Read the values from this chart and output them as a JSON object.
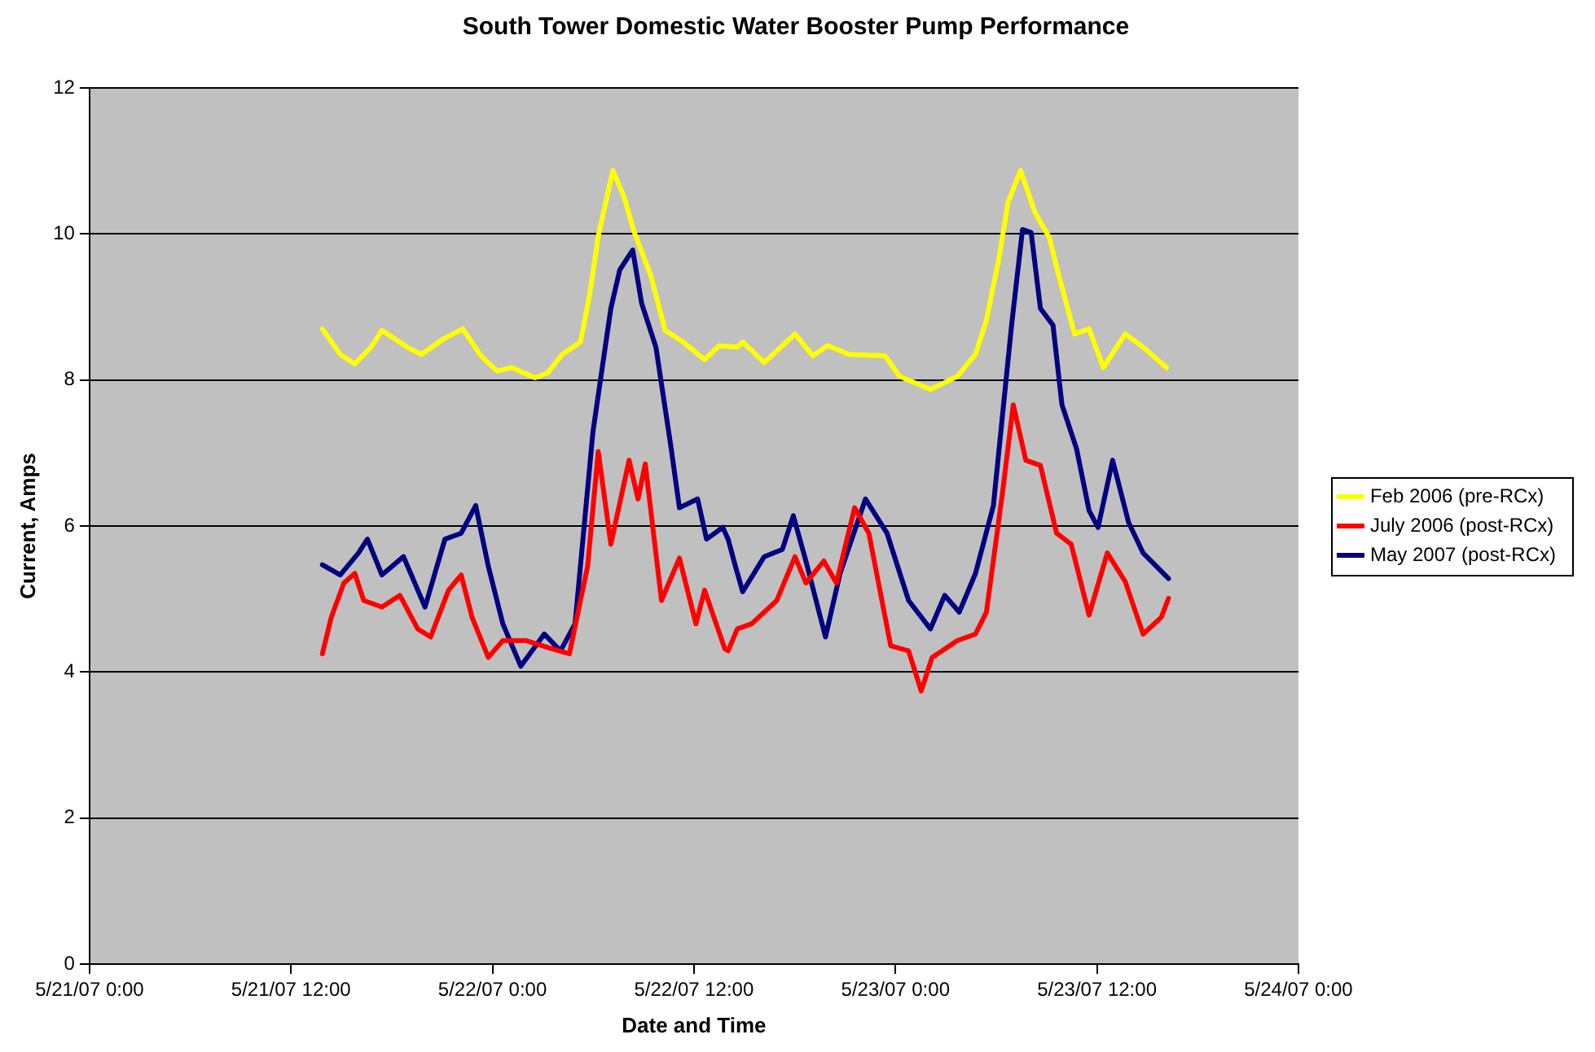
{
  "chart_data": {
    "type": "line",
    "title": "South Tower Domestic Water Booster Pump Performance",
    "xlabel": "Date and Time",
    "ylabel": "Current, Amps",
    "xlim": [
      "2007-05-21T00:00",
      "2007-05-24T00:00"
    ],
    "xticks": [
      {
        "value": "2007-05-21T00:00",
        "label": "5/21/07 0:00"
      },
      {
        "value": "2007-05-21T12:00",
        "label": "5/21/07 12:00"
      },
      {
        "value": "2007-05-22T00:00",
        "label": "5/22/07 0:00"
      },
      {
        "value": "2007-05-22T12:00",
        "label": "5/22/07 12:00"
      },
      {
        "value": "2007-05-23T00:00",
        "label": "5/23/07 0:00"
      },
      {
        "value": "2007-05-23T12:00",
        "label": "5/23/07 12:00"
      },
      {
        "value": "2007-05-24T00:00",
        "label": "5/24/07 0:00"
      }
    ],
    "ylim": [
      0,
      12
    ],
    "yticks": [
      0,
      2,
      4,
      6,
      8,
      10,
      12
    ],
    "grid": "y",
    "legend": "right",
    "marker": "none",
    "line_style": "solid",
    "series": [
      {
        "name": "Feb 2006 (pre-RCx)",
        "color": "#ffff00",
        "x": [
          "2007-05-21T13:52",
          "2007-05-21T14:56",
          "2007-05-21T15:48",
          "2007-05-21T16:46",
          "2007-05-21T17:25",
          "2007-05-21T18:55",
          "2007-05-21T19:46",
          "2007-05-21T21:04",
          "2007-05-21T22:14",
          "2007-05-21T23:19",
          "2007-05-22T00:17",
          "2007-05-22T01:09",
          "2007-05-22T02:32",
          "2007-05-22T03:18",
          "2007-05-22T04:09",
          "2007-05-22T05:14",
          "2007-05-22T05:46",
          "2007-05-22T06:18",
          "2007-05-22T07:10",
          "2007-05-22T07:49",
          "2007-05-22T08:27",
          "2007-05-22T09:25",
          "2007-05-22T10:17",
          "2007-05-22T11:21",
          "2007-05-22T12:38",
          "2007-05-22T13:30",
          "2007-05-22T14:35",
          "2007-05-22T14:54",
          "2007-05-22T16:11",
          "2007-05-22T18:01",
          "2007-05-22T19:05",
          "2007-05-22T19:57",
          "2007-05-22T21:14",
          "2007-05-22T23:23",
          "2007-05-23T00:15",
          "2007-05-23T02:05",
          "2007-05-23T03:41",
          "2007-05-23T04:46",
          "2007-05-23T05:25",
          "2007-05-23T06:10",
          "2007-05-23T06:42",
          "2007-05-23T07:27",
          "2007-05-23T08:19",
          "2007-05-23T09:10",
          "2007-05-23T09:43",
          "2007-05-23T10:40",
          "2007-05-23T11:32",
          "2007-05-23T12:23",
          "2007-05-23T13:41",
          "2007-05-23T14:45",
          "2007-05-23T16:09"
        ],
        "values": [
          8.7,
          8.35,
          8.22,
          8.45,
          8.68,
          8.45,
          8.35,
          8.56,
          8.7,
          8.33,
          8.12,
          8.17,
          8.03,
          8.1,
          8.35,
          8.52,
          9.14,
          9.97,
          10.87,
          10.52,
          10.02,
          9.44,
          8.68,
          8.52,
          8.28,
          8.47,
          8.45,
          8.52,
          8.24,
          8.63,
          8.33,
          8.47,
          8.35,
          8.33,
          8.05,
          7.87,
          8.05,
          8.35,
          8.82,
          9.67,
          10.43,
          10.87,
          10.29,
          9.95,
          9.44,
          8.63,
          8.7,
          8.17,
          8.63,
          8.45,
          8.17
        ]
      },
      {
        "name": "July 2006 (post-RCx)",
        "color": "#ff0000",
        "x": [
          "2007-05-21T13:52",
          "2007-05-21T14:24",
          "2007-05-21T15:09",
          "2007-05-21T15:48",
          "2007-05-21T16:20",
          "2007-05-21T17:25",
          "2007-05-21T18:29",
          "2007-05-21T19:33",
          "2007-05-21T20:19",
          "2007-05-21T21:23",
          "2007-05-21T22:08",
          "2007-05-21T22:47",
          "2007-05-21T23:45",
          "2007-05-22T00:37",
          "2007-05-22T02:01",
          "2007-05-22T03:31",
          "2007-05-22T04:35",
          "2007-05-22T05:40",
          "2007-05-22T06:18",
          "2007-05-22T07:03",
          "2007-05-22T08:08",
          "2007-05-22T08:40",
          "2007-05-22T09:06",
          "2007-05-22T10:04",
          "2007-05-22T11:08",
          "2007-05-22T12:07",
          "2007-05-22T12:38",
          "2007-05-22T13:50",
          "2007-05-22T14:02",
          "2007-05-22T14:35",
          "2007-05-22T15:26",
          "2007-05-22T16:56",
          "2007-05-22T18:01",
          "2007-05-22T18:40",
          "2007-05-22T19:44",
          "2007-05-22T20:29",
          "2007-05-22T21:34",
          "2007-05-22T22:25",
          "2007-05-22T23:43",
          "2007-05-23T00:47",
          "2007-05-23T01:32",
          "2007-05-23T02:11",
          "2007-05-23T03:41",
          "2007-05-23T04:46",
          "2007-05-23T05:25",
          "2007-05-23T06:22",
          "2007-05-23T07:01",
          "2007-05-23T07:46",
          "2007-05-23T08:38",
          "2007-05-23T09:36",
          "2007-05-23T10:28",
          "2007-05-23T11:32",
          "2007-05-23T12:37",
          "2007-05-23T13:41",
          "2007-05-23T14:45",
          "2007-05-23T15:50",
          "2007-05-23T16:16"
        ],
        "values": [
          4.25,
          4.75,
          5.22,
          5.35,
          4.98,
          4.89,
          5.05,
          4.59,
          4.48,
          5.12,
          5.33,
          4.75,
          4.2,
          4.43,
          4.43,
          4.32,
          4.25,
          5.45,
          7.02,
          5.75,
          6.9,
          6.37,
          6.85,
          4.98,
          5.56,
          4.66,
          5.12,
          4.32,
          4.29,
          4.59,
          4.66,
          4.98,
          5.58,
          5.22,
          5.52,
          5.22,
          6.25,
          5.9,
          4.36,
          4.29,
          3.74,
          4.2,
          4.43,
          4.52,
          4.82,
          6.44,
          7.66,
          6.9,
          6.83,
          5.9,
          5.75,
          4.78,
          5.63,
          5.24,
          4.52,
          4.75,
          5.01
        ]
      },
      {
        "name": "May 2007 (post-RCx)",
        "color": "#000080",
        "x": [
          "2007-05-21T13:52",
          "2007-05-21T14:56",
          "2007-05-21T16:01",
          "2007-05-21T16:33",
          "2007-05-21T17:25",
          "2007-05-21T18:42",
          "2007-05-21T19:59",
          "2007-05-21T21:10",
          "2007-05-21T22:08",
          "2007-05-21T23:00",
          "2007-05-21T23:45",
          "2007-05-22T00:37",
          "2007-05-22T01:41",
          "2007-05-22T03:05",
          "2007-05-22T04:03",
          "2007-05-22T04:55",
          "2007-05-22T05:59",
          "2007-05-22T07:03",
          "2007-05-22T07:35",
          "2007-05-22T08:21",
          "2007-05-22T08:53",
          "2007-05-22T09:44",
          "2007-05-22T10:36",
          "2007-05-22T11:08",
          "2007-05-22T12:13",
          "2007-05-22T12:45",
          "2007-05-22T13:43",
          "2007-05-22T14:02",
          "2007-05-22T14:28",
          "2007-05-22T14:54",
          "2007-05-22T16:11",
          "2007-05-22T17:16",
          "2007-05-22T17:55",
          "2007-05-22T18:40",
          "2007-05-22T19:50",
          "2007-05-22T20:42",
          "2007-05-22T22:13",
          "2007-05-22T23:30",
          "2007-05-23T00:47",
          "2007-05-23T02:05",
          "2007-05-23T02:56",
          "2007-05-23T03:48",
          "2007-05-23T04:46",
          "2007-05-23T05:50",
          "2007-05-23T06:55",
          "2007-05-23T07:34",
          "2007-05-23T08:05",
          "2007-05-23T08:38",
          "2007-05-23T09:23",
          "2007-05-23T09:55",
          "2007-05-23T10:47",
          "2007-05-23T11:32",
          "2007-05-23T12:04",
          "2007-05-23T12:56",
          "2007-05-23T13:53",
          "2007-05-23T14:45",
          "2007-05-23T16:16"
        ],
        "values": [
          5.47,
          5.33,
          5.63,
          5.82,
          5.33,
          5.58,
          4.89,
          5.82,
          5.9,
          6.28,
          5.45,
          4.66,
          4.08,
          4.52,
          4.29,
          4.66,
          7.29,
          8.98,
          9.51,
          9.78,
          9.05,
          8.45,
          7.13,
          6.25,
          6.37,
          5.82,
          5.98,
          5.82,
          5.45,
          5.1,
          5.58,
          5.68,
          6.14,
          5.52,
          4.48,
          5.35,
          6.37,
          5.9,
          4.98,
          4.59,
          5.05,
          4.82,
          5.35,
          6.28,
          8.75,
          10.06,
          10.02,
          8.98,
          8.75,
          7.66,
          7.06,
          6.21,
          5.98,
          6.9,
          6.05,
          5.63,
          5.28
        ]
      }
    ]
  }
}
